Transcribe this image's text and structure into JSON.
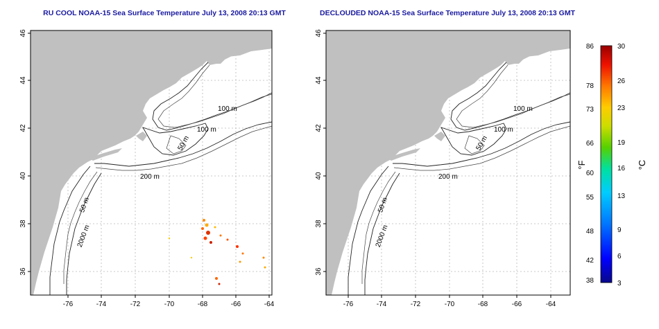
{
  "panels": [
    {
      "title": "RU COOL NOAA-15 Sea Surface Temperature July 13, 2008 20:13 GMT",
      "lat_ticks": [
        "46",
        "44",
        "42",
        "40",
        "38",
        "36"
      ],
      "lon_ticks": [
        "-76",
        "-74",
        "-72",
        "-70",
        "-68",
        "-66",
        "-64"
      ],
      "contour_labels": [
        "100 m",
        "100 m",
        "50 m",
        "200 m",
        "50 m",
        "2000 m"
      ]
    },
    {
      "title": "DECLOUDED NOAA-15 Sea Surface Temperature July 13, 2008 20:13 GMT",
      "lat_ticks": [
        "46",
        "44",
        "42",
        "40",
        "38",
        "36"
      ],
      "lon_ticks": [
        "-76",
        "-74",
        "-72",
        "-70",
        "-68",
        "-66",
        "-64"
      ],
      "contour_labels": [
        "100 m",
        "100 m",
        "50 m",
        "200 m",
        "50 m",
        "2000 m"
      ]
    }
  ],
  "colorbar": {
    "fahrenheit_ticks": [
      "86",
      "78",
      "73",
      "66",
      "60",
      "55",
      "48",
      "42",
      "38"
    ],
    "celsius_ticks": [
      "30",
      "26",
      "23",
      "19",
      "16",
      "13",
      "9",
      "6",
      "3"
    ],
    "left_unit": "°F",
    "right_unit": "°C",
    "colors": [
      "#08088a",
      "#0000ff",
      "#0077ff",
      "#00ccff",
      "#00e0a0",
      "#55d000",
      "#ccdd00",
      "#ffcc00",
      "#ff7700",
      "#ee1100",
      "#990000"
    ]
  }
}
